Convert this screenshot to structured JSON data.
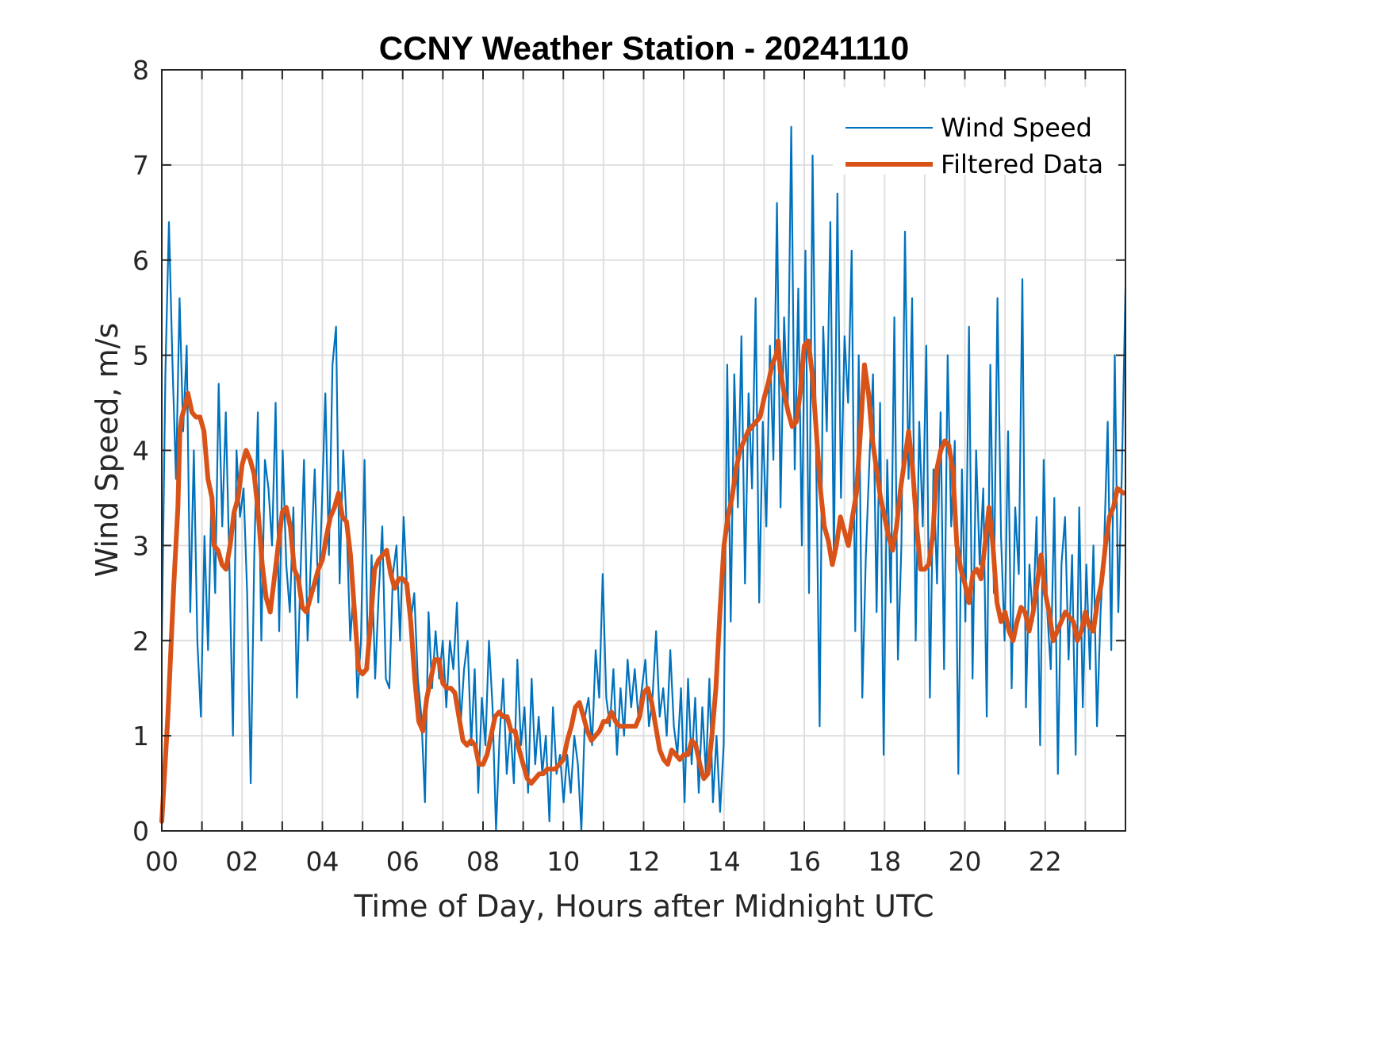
{
  "chart_data": {
    "type": "line",
    "title": "CCNY Weather Station - 20241110",
    "xlabel": "Time of Day, Hours after Midnight UTC",
    "ylabel": "Wind Speed, m/s",
    "xlim": [
      0,
      24
    ],
    "ylim": [
      0,
      8
    ],
    "grid": true,
    "minor_x_grid_step_hours": 1,
    "x_ticks": [
      0,
      2,
      4,
      6,
      8,
      10,
      12,
      14,
      16,
      18,
      20,
      22
    ],
    "x_tick_labels": [
      "00",
      "02",
      "04",
      "06",
      "08",
      "10",
      "12",
      "14",
      "16",
      "18",
      "20",
      "22"
    ],
    "y_ticks": [
      0,
      1,
      2,
      3,
      4,
      5,
      6,
      7,
      8
    ],
    "y_tick_labels": [
      "0",
      "1",
      "2",
      "3",
      "4",
      "5",
      "6",
      "7",
      "8"
    ],
    "legend": {
      "position": "top-right",
      "entries": [
        "Wind Speed",
        "Filtered Data"
      ]
    },
    "series": [
      {
        "name": "Wind Speed",
        "color": "#0072BD",
        "x_step_hours": 0.1667,
        "values": [
          2.0,
          4.8,
          6.4,
          4.9,
          3.7,
          5.6,
          4.2,
          5.1,
          2.3,
          4.0,
          2.0,
          1.2,
          3.1,
          1.9,
          3.6,
          2.5,
          4.7,
          3.2,
          4.4,
          2.8,
          1.0,
          4.0,
          3.3,
          3.6,
          2.5,
          0.5,
          2.9,
          4.4,
          2.0,
          3.9,
          3.6,
          3.0,
          4.5,
          2.1,
          4.0,
          2.8,
          2.3,
          3.4,
          1.4,
          2.7,
          3.9,
          2.0,
          2.9,
          3.8,
          2.4,
          3.4,
          4.6,
          2.9,
          4.9,
          5.3,
          2.6,
          4.0,
          3.2,
          2.0,
          2.6,
          1.4,
          2.0,
          3.9,
          1.7,
          2.9,
          1.6,
          2.5,
          3.2,
          1.6,
          1.5,
          2.7,
          3.0,
          2.0,
          3.3,
          2.5,
          2.2,
          2.5,
          1.6,
          1.2,
          0.3,
          2.3,
          1.5,
          2.1,
          1.6,
          2.0,
          1.3,
          2.0,
          1.7,
          2.4,
          1.1,
          1.7,
          2.0,
          0.9,
          1.7,
          0.4,
          1.4,
          0.9,
          2.0,
          1.3,
          0.0,
          1.0,
          1.6,
          0.6,
          1.1,
          0.5,
          1.8,
          0.9,
          1.3,
          0.4,
          1.6,
          0.7,
          1.2,
          0.6,
          1.0,
          0.1,
          1.3,
          0.6,
          0.8,
          0.3,
          0.8,
          0.4,
          1.0,
          0.7,
          0.0,
          1.2,
          1.4,
          0.9,
          1.9,
          1.4,
          2.7,
          1.4,
          1.1,
          1.7,
          0.8,
          1.5,
          1.0,
          1.8,
          1.3,
          1.7,
          1.2,
          1.5,
          1.8,
          1.1,
          1.4,
          2.1,
          1.2,
          1.5,
          1.0,
          1.9,
          1.1,
          0.8,
          1.5,
          0.3,
          1.6,
          0.7,
          1.4,
          0.4,
          1.3,
          0.6,
          1.6,
          0.3,
          1.0,
          0.2,
          0.9,
          4.9,
          2.2,
          4.8,
          3.4,
          5.2,
          2.6,
          4.6,
          3.6,
          5.6,
          2.4,
          4.3,
          3.2,
          5.1,
          3.9,
          6.6,
          3.4,
          5.4,
          4.4,
          7.4,
          3.8,
          5.7,
          3.0,
          6.1,
          2.5,
          7.1,
          4.0,
          1.1,
          5.3,
          4.2,
          6.4,
          2.8,
          6.7,
          3.5,
          5.2,
          4.5,
          6.1,
          2.1,
          5.0,
          1.4,
          2.9,
          3.9,
          4.8,
          2.3,
          4.5,
          0.8,
          3.9,
          2.4,
          5.4,
          1.8,
          3.0,
          6.3,
          3.7,
          5.6,
          2.0,
          4.3,
          3.2,
          5.1,
          1.4,
          3.8,
          2.6,
          4.4,
          1.7,
          5.0,
          3.2,
          4.1,
          0.6,
          3.8,
          2.2,
          5.3,
          1.6,
          4.0,
          2.8,
          3.6,
          1.2,
          4.9,
          2.5,
          5.6,
          3.1,
          2.0,
          4.2,
          1.5,
          3.4,
          2.7,
          5.8,
          1.3,
          2.8,
          2.2,
          3.3,
          0.9,
          3.9,
          2.3,
          1.7,
          3.5,
          0.6,
          2.8,
          3.3,
          1.8,
          2.9,
          0.8,
          3.4,
          1.3,
          2.8,
          1.7,
          3.0,
          1.1,
          2.3,
          3.0,
          4.3,
          1.9,
          5.0,
          2.3,
          3.8,
          5.7
        ]
      },
      {
        "name": "Filtered Data",
        "color": "#D95319",
        "points": [
          [
            0.0,
            0.1
          ],
          [
            0.15,
            1.2
          ],
          [
            0.3,
            2.6
          ],
          [
            0.4,
            3.4
          ],
          [
            0.45,
            4.2
          ],
          [
            0.5,
            4.35
          ],
          [
            0.6,
            4.5
          ],
          [
            0.65,
            4.6
          ],
          [
            0.75,
            4.4
          ],
          [
            0.85,
            4.35
          ],
          [
            0.95,
            4.35
          ],
          [
            1.05,
            4.2
          ],
          [
            1.15,
            3.7
          ],
          [
            1.25,
            3.5
          ],
          [
            1.3,
            3.0
          ],
          [
            1.4,
            2.95
          ],
          [
            1.5,
            2.8
          ],
          [
            1.6,
            2.75
          ],
          [
            1.7,
            3.0
          ],
          [
            1.8,
            3.35
          ],
          [
            1.9,
            3.5
          ],
          [
            2.0,
            3.85
          ],
          [
            2.1,
            4.0
          ],
          [
            2.2,
            3.9
          ],
          [
            2.3,
            3.75
          ],
          [
            2.4,
            3.35
          ],
          [
            2.5,
            2.8
          ],
          [
            2.6,
            2.45
          ],
          [
            2.7,
            2.3
          ],
          [
            2.8,
            2.65
          ],
          [
            2.9,
            3.0
          ],
          [
            3.0,
            3.35
          ],
          [
            3.1,
            3.4
          ],
          [
            3.2,
            3.2
          ],
          [
            3.3,
            2.75
          ],
          [
            3.4,
            2.65
          ],
          [
            3.5,
            2.35
          ],
          [
            3.6,
            2.3
          ],
          [
            3.7,
            2.45
          ],
          [
            3.8,
            2.6
          ],
          [
            3.9,
            2.75
          ],
          [
            4.0,
            2.85
          ],
          [
            4.1,
            3.1
          ],
          [
            4.2,
            3.3
          ],
          [
            4.3,
            3.4
          ],
          [
            4.4,
            3.55
          ],
          [
            4.5,
            3.3
          ],
          [
            4.6,
            3.25
          ],
          [
            4.7,
            2.9
          ],
          [
            4.8,
            2.3
          ],
          [
            4.9,
            1.7
          ],
          [
            5.0,
            1.65
          ],
          [
            5.1,
            1.7
          ],
          [
            5.2,
            2.2
          ],
          [
            5.3,
            2.75
          ],
          [
            5.4,
            2.85
          ],
          [
            5.5,
            2.9
          ],
          [
            5.6,
            2.95
          ],
          [
            5.7,
            2.7
          ],
          [
            5.8,
            2.55
          ],
          [
            5.9,
            2.65
          ],
          [
            6.0,
            2.65
          ],
          [
            6.1,
            2.6
          ],
          [
            6.2,
            2.2
          ],
          [
            6.3,
            1.6
          ],
          [
            6.4,
            1.15
          ],
          [
            6.5,
            1.05
          ],
          [
            6.6,
            1.4
          ],
          [
            6.7,
            1.6
          ],
          [
            6.8,
            1.8
          ],
          [
            6.9,
            1.8
          ],
          [
            7.0,
            1.55
          ],
          [
            7.1,
            1.5
          ],
          [
            7.2,
            1.5
          ],
          [
            7.3,
            1.45
          ],
          [
            7.4,
            1.2
          ],
          [
            7.5,
            0.95
          ],
          [
            7.6,
            0.9
          ],
          [
            7.7,
            0.95
          ],
          [
            7.8,
            0.9
          ],
          [
            7.9,
            0.7
          ],
          [
            8.0,
            0.7
          ],
          [
            8.1,
            0.8
          ],
          [
            8.2,
            1.0
          ],
          [
            8.3,
            1.2
          ],
          [
            8.4,
            1.25
          ],
          [
            8.5,
            1.2
          ],
          [
            8.6,
            1.2
          ],
          [
            8.7,
            1.05
          ],
          [
            8.8,
            1.05
          ],
          [
            8.9,
            0.85
          ],
          [
            9.0,
            0.7
          ],
          [
            9.1,
            0.55
          ],
          [
            9.2,
            0.5
          ],
          [
            9.3,
            0.55
          ],
          [
            9.4,
            0.6
          ],
          [
            9.5,
            0.6
          ],
          [
            9.6,
            0.65
          ],
          [
            9.7,
            0.65
          ],
          [
            9.8,
            0.65
          ],
          [
            9.9,
            0.7
          ],
          [
            10.0,
            0.75
          ],
          [
            10.1,
            0.95
          ],
          [
            10.2,
            1.1
          ],
          [
            10.3,
            1.3
          ],
          [
            10.4,
            1.35
          ],
          [
            10.5,
            1.2
          ],
          [
            10.6,
            1.05
          ],
          [
            10.7,
            0.95
          ],
          [
            10.8,
            1.0
          ],
          [
            10.9,
            1.05
          ],
          [
            11.0,
            1.15
          ],
          [
            11.1,
            1.15
          ],
          [
            11.2,
            1.25
          ],
          [
            11.3,
            1.15
          ],
          [
            11.4,
            1.1
          ],
          [
            11.5,
            1.1
          ],
          [
            11.6,
            1.1
          ],
          [
            11.7,
            1.1
          ],
          [
            11.8,
            1.1
          ],
          [
            11.9,
            1.2
          ],
          [
            12.0,
            1.45
          ],
          [
            12.1,
            1.5
          ],
          [
            12.2,
            1.35
          ],
          [
            12.3,
            1.1
          ],
          [
            12.4,
            0.85
          ],
          [
            12.5,
            0.75
          ],
          [
            12.6,
            0.7
          ],
          [
            12.7,
            0.85
          ],
          [
            12.8,
            0.8
          ],
          [
            12.9,
            0.75
          ],
          [
            13.0,
            0.8
          ],
          [
            13.1,
            0.8
          ],
          [
            13.2,
            0.95
          ],
          [
            13.3,
            0.9
          ],
          [
            13.4,
            0.7
          ],
          [
            13.5,
            0.55
          ],
          [
            13.6,
            0.6
          ],
          [
            13.7,
            1.0
          ],
          [
            13.8,
            1.5
          ],
          [
            13.9,
            2.3
          ],
          [
            14.0,
            3.0
          ],
          [
            14.1,
            3.3
          ],
          [
            14.2,
            3.5
          ],
          [
            14.3,
            3.8
          ],
          [
            14.4,
            4.0
          ],
          [
            14.5,
            4.1
          ],
          [
            14.6,
            4.2
          ],
          [
            14.7,
            4.25
          ],
          [
            14.8,
            4.3
          ],
          [
            14.9,
            4.35
          ],
          [
            15.0,
            4.55
          ],
          [
            15.1,
            4.7
          ],
          [
            15.2,
            4.9
          ],
          [
            15.3,
            5.0
          ],
          [
            15.35,
            5.15
          ],
          [
            15.4,
            4.85
          ],
          [
            15.5,
            4.6
          ],
          [
            15.6,
            4.4
          ],
          [
            15.7,
            4.25
          ],
          [
            15.8,
            4.3
          ],
          [
            15.9,
            4.6
          ],
          [
            16.0,
            5.1
          ],
          [
            16.1,
            5.15
          ],
          [
            16.2,
            4.8
          ],
          [
            16.3,
            4.2
          ],
          [
            16.4,
            3.6
          ],
          [
            16.5,
            3.2
          ],
          [
            16.6,
            3.05
          ],
          [
            16.7,
            2.8
          ],
          [
            16.8,
            3.0
          ],
          [
            16.9,
            3.3
          ],
          [
            17.0,
            3.15
          ],
          [
            17.1,
            3.0
          ],
          [
            17.2,
            3.3
          ],
          [
            17.3,
            3.55
          ],
          [
            17.4,
            4.2
          ],
          [
            17.5,
            4.9
          ],
          [
            17.6,
            4.6
          ],
          [
            17.7,
            4.1
          ],
          [
            17.8,
            3.8
          ],
          [
            17.9,
            3.5
          ],
          [
            18.0,
            3.3
          ],
          [
            18.1,
            3.1
          ],
          [
            18.2,
            2.95
          ],
          [
            18.3,
            3.2
          ],
          [
            18.4,
            3.6
          ],
          [
            18.5,
            3.9
          ],
          [
            18.6,
            4.2
          ],
          [
            18.7,
            3.8
          ],
          [
            18.8,
            3.2
          ],
          [
            18.9,
            2.75
          ],
          [
            19.0,
            2.75
          ],
          [
            19.1,
            2.8
          ],
          [
            19.2,
            3.1
          ],
          [
            19.3,
            3.8
          ],
          [
            19.4,
            4.0
          ],
          [
            19.5,
            4.1
          ],
          [
            19.6,
            4.05
          ],
          [
            19.7,
            3.8
          ],
          [
            19.8,
            3.0
          ],
          [
            19.9,
            2.75
          ],
          [
            20.0,
            2.6
          ],
          [
            20.1,
            2.4
          ],
          [
            20.2,
            2.7
          ],
          [
            20.3,
            2.75
          ],
          [
            20.4,
            2.65
          ],
          [
            20.5,
            3.0
          ],
          [
            20.6,
            3.4
          ],
          [
            20.7,
            3.0
          ],
          [
            20.8,
            2.4
          ],
          [
            20.9,
            2.2
          ],
          [
            21.0,
            2.3
          ],
          [
            21.1,
            2.1
          ],
          [
            21.2,
            2.0
          ],
          [
            21.3,
            2.2
          ],
          [
            21.4,
            2.35
          ],
          [
            21.5,
            2.3
          ],
          [
            21.6,
            2.1
          ],
          [
            21.7,
            2.3
          ],
          [
            21.8,
            2.6
          ],
          [
            21.9,
            2.9
          ],
          [
            22.0,
            2.5
          ],
          [
            22.1,
            2.3
          ],
          [
            22.2,
            2.0
          ],
          [
            22.3,
            2.1
          ],
          [
            22.4,
            2.2
          ],
          [
            22.5,
            2.3
          ],
          [
            22.6,
            2.25
          ],
          [
            22.7,
            2.2
          ],
          [
            22.8,
            2.0
          ],
          [
            22.9,
            2.1
          ],
          [
            23.0,
            2.3
          ],
          [
            23.1,
            2.15
          ],
          [
            23.2,
            2.1
          ],
          [
            23.3,
            2.4
          ],
          [
            23.4,
            2.6
          ],
          [
            23.5,
            3.0
          ],
          [
            23.6,
            3.3
          ],
          [
            23.7,
            3.4
          ],
          [
            23.8,
            3.6
          ],
          [
            23.95,
            3.55
          ]
        ]
      }
    ]
  }
}
